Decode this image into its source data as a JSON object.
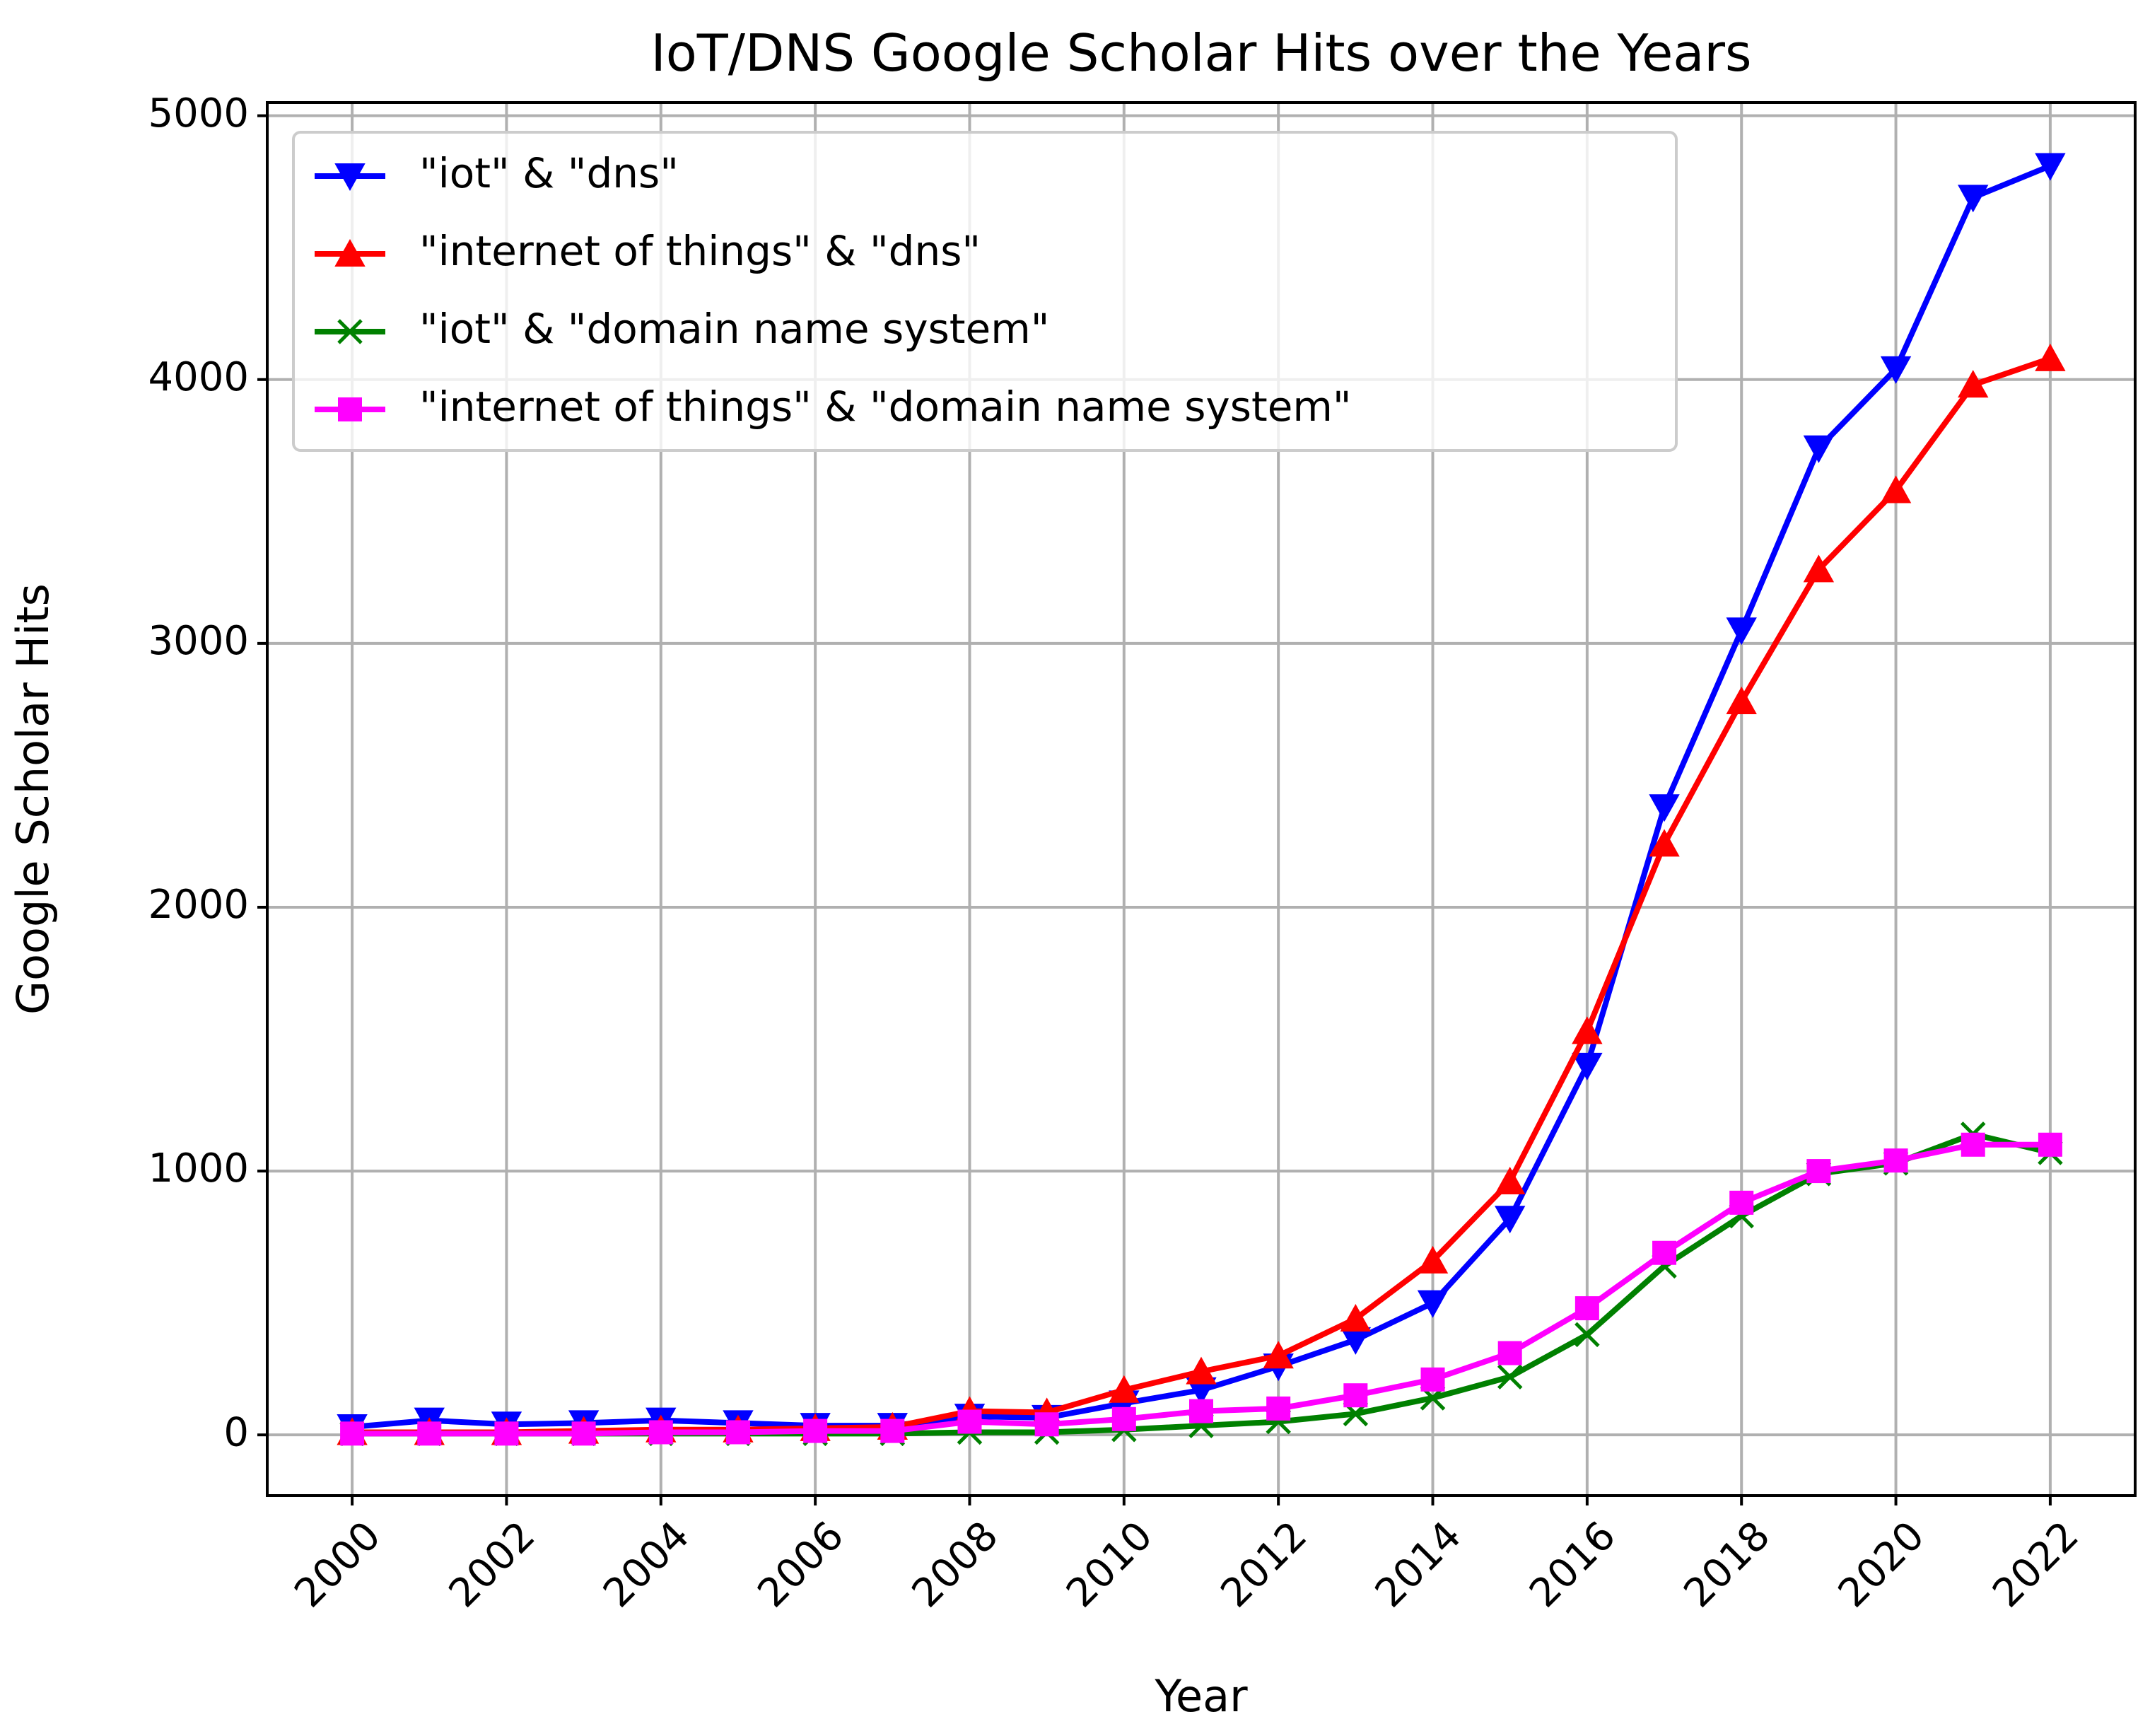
{
  "chart_data": {
    "type": "line",
    "title": "IoT/DNS Google Scholar Hits over the Years",
    "xlabel": "Year",
    "ylabel": "Google Scholar Hits",
    "xlim": [
      1998.9,
      2023.1
    ],
    "ylim": [
      -230,
      5050
    ],
    "x_ticks": [
      2000,
      2002,
      2004,
      2006,
      2008,
      2010,
      2012,
      2014,
      2016,
      2018,
      2020,
      2022
    ],
    "y_ticks": [
      0,
      1000,
      2000,
      3000,
      4000,
      5000
    ],
    "grid": true,
    "legend_position": "upper-left",
    "x": [
      2000,
      2001,
      2002,
      2003,
      2004,
      2005,
      2006,
      2007,
      2008,
      2009,
      2010,
      2011,
      2012,
      2013,
      2014,
      2015,
      2016,
      2017,
      2018,
      2019,
      2020,
      2021,
      2022
    ],
    "series": [
      {
        "name": "\"iot\" & \"dns\"",
        "color": "#0000ff",
        "marker": "triangle-down",
        "values": [
          30,
          55,
          40,
          45,
          55,
          45,
          35,
          35,
          70,
          65,
          120,
          170,
          260,
          360,
          500,
          820,
          1400,
          2380,
          3050,
          3740,
          4040,
          4690,
          4810
        ]
      },
      {
        "name": "\"internet of things\" & \"dns\"",
        "color": "#ff0000",
        "marker": "triangle-up",
        "values": [
          10,
          10,
          10,
          15,
          20,
          20,
          25,
          30,
          90,
          85,
          170,
          240,
          300,
          440,
          660,
          960,
          1530,
          2240,
          2780,
          3280,
          3580,
          3980,
          4080
        ]
      },
      {
        "name": "\"iot\" & \"domain name system\"",
        "color": "#008000",
        "marker": "x",
        "values": [
          5,
          5,
          5,
          5,
          5,
          5,
          5,
          5,
          10,
          10,
          20,
          35,
          50,
          80,
          140,
          220,
          380,
          640,
          830,
          990,
          1030,
          1140,
          1070
        ]
      },
      {
        "name": "\"internet of things\" & \"domain name system\"",
        "color": "#ff00ff",
        "marker": "square",
        "values": [
          5,
          5,
          5,
          5,
          10,
          10,
          15,
          15,
          50,
          40,
          60,
          90,
          100,
          150,
          210,
          310,
          480,
          690,
          880,
          1000,
          1040,
          1100,
          1100
        ]
      }
    ]
  }
}
